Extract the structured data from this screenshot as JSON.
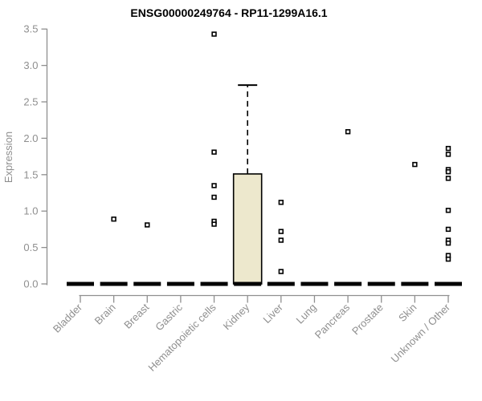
{
  "chart_data": {
    "type": "boxplot",
    "title": "ENSG00000249764 - RP11-1299A16.1",
    "xlabel": "",
    "ylabel": "Expression",
    "ylim": [
      0,
      3.5
    ],
    "yticks": [
      "0.0",
      "0.5",
      "1.0",
      "1.5",
      "2.0",
      "2.5",
      "3.0",
      "3.5"
    ],
    "grid": false,
    "legend": "none",
    "categories": [
      "Bladder",
      "Brain",
      "Breast",
      "Gastric",
      "Hematopoietic cells",
      "Kidney",
      "Liver",
      "Lung",
      "Pancreas",
      "Prostate",
      "Skin",
      "Unknown / Other"
    ],
    "boxes": [
      {
        "category": "Bladder",
        "q1": 0,
        "median": 0,
        "q3": 0,
        "whisker_low": 0,
        "whisker_high": 0,
        "outliers": []
      },
      {
        "category": "Brain",
        "q1": 0,
        "median": 0,
        "q3": 0,
        "whisker_low": 0,
        "whisker_high": 0,
        "outliers": [
          0.89
        ]
      },
      {
        "category": "Breast",
        "q1": 0,
        "median": 0,
        "q3": 0,
        "whisker_low": 0,
        "whisker_high": 0,
        "outliers": [
          0.81
        ]
      },
      {
        "category": "Gastric",
        "q1": 0,
        "median": 0,
        "q3": 0,
        "whisker_low": 0,
        "whisker_high": 0,
        "outliers": []
      },
      {
        "category": "Hematopoietic cells",
        "q1": 0,
        "median": 0,
        "q3": 0,
        "whisker_low": 0,
        "whisker_high": 0,
        "outliers": [
          3.43,
          1.81,
          1.35,
          1.19,
          0.86,
          0.82
        ]
      },
      {
        "category": "Kidney",
        "q1": 0,
        "median": 0,
        "q3": 1.51,
        "whisker_low": 0,
        "whisker_high": 2.73,
        "outliers": []
      },
      {
        "category": "Liver",
        "q1": 0,
        "median": 0,
        "q3": 0,
        "whisker_low": 0,
        "whisker_high": 0,
        "outliers": [
          1.12,
          0.72,
          0.6,
          0.17
        ]
      },
      {
        "category": "Lung",
        "q1": 0,
        "median": 0,
        "q3": 0,
        "whisker_low": 0,
        "whisker_high": 0,
        "outliers": []
      },
      {
        "category": "Pancreas",
        "q1": 0,
        "median": 0,
        "q3": 0,
        "whisker_low": 0,
        "whisker_high": 0,
        "outliers": [
          2.09
        ]
      },
      {
        "category": "Prostate",
        "q1": 0,
        "median": 0,
        "q3": 0,
        "whisker_low": 0,
        "whisker_high": 0,
        "outliers": []
      },
      {
        "category": "Skin",
        "q1": 0,
        "median": 0,
        "q3": 0,
        "whisker_low": 0,
        "whisker_high": 0,
        "outliers": [
          1.64
        ]
      },
      {
        "category": "Unknown / Other",
        "q1": 0,
        "median": 0,
        "q3": 0,
        "whisker_low": 0,
        "whisker_high": 0,
        "outliers": [
          1.86,
          1.78,
          1.57,
          1.54,
          1.45,
          1.01,
          0.75,
          0.6,
          0.56,
          0.39,
          0.34
        ]
      }
    ],
    "colors": {
      "box_fill": "#EDE8CD",
      "box_stroke": "#000000",
      "median": "#000000",
      "outlier_stroke": "#000000",
      "outlier_fill": "#FFFFFF",
      "axis": "#8F8F8F",
      "title": "#000000",
      "background": "#FFFFFF"
    }
  }
}
